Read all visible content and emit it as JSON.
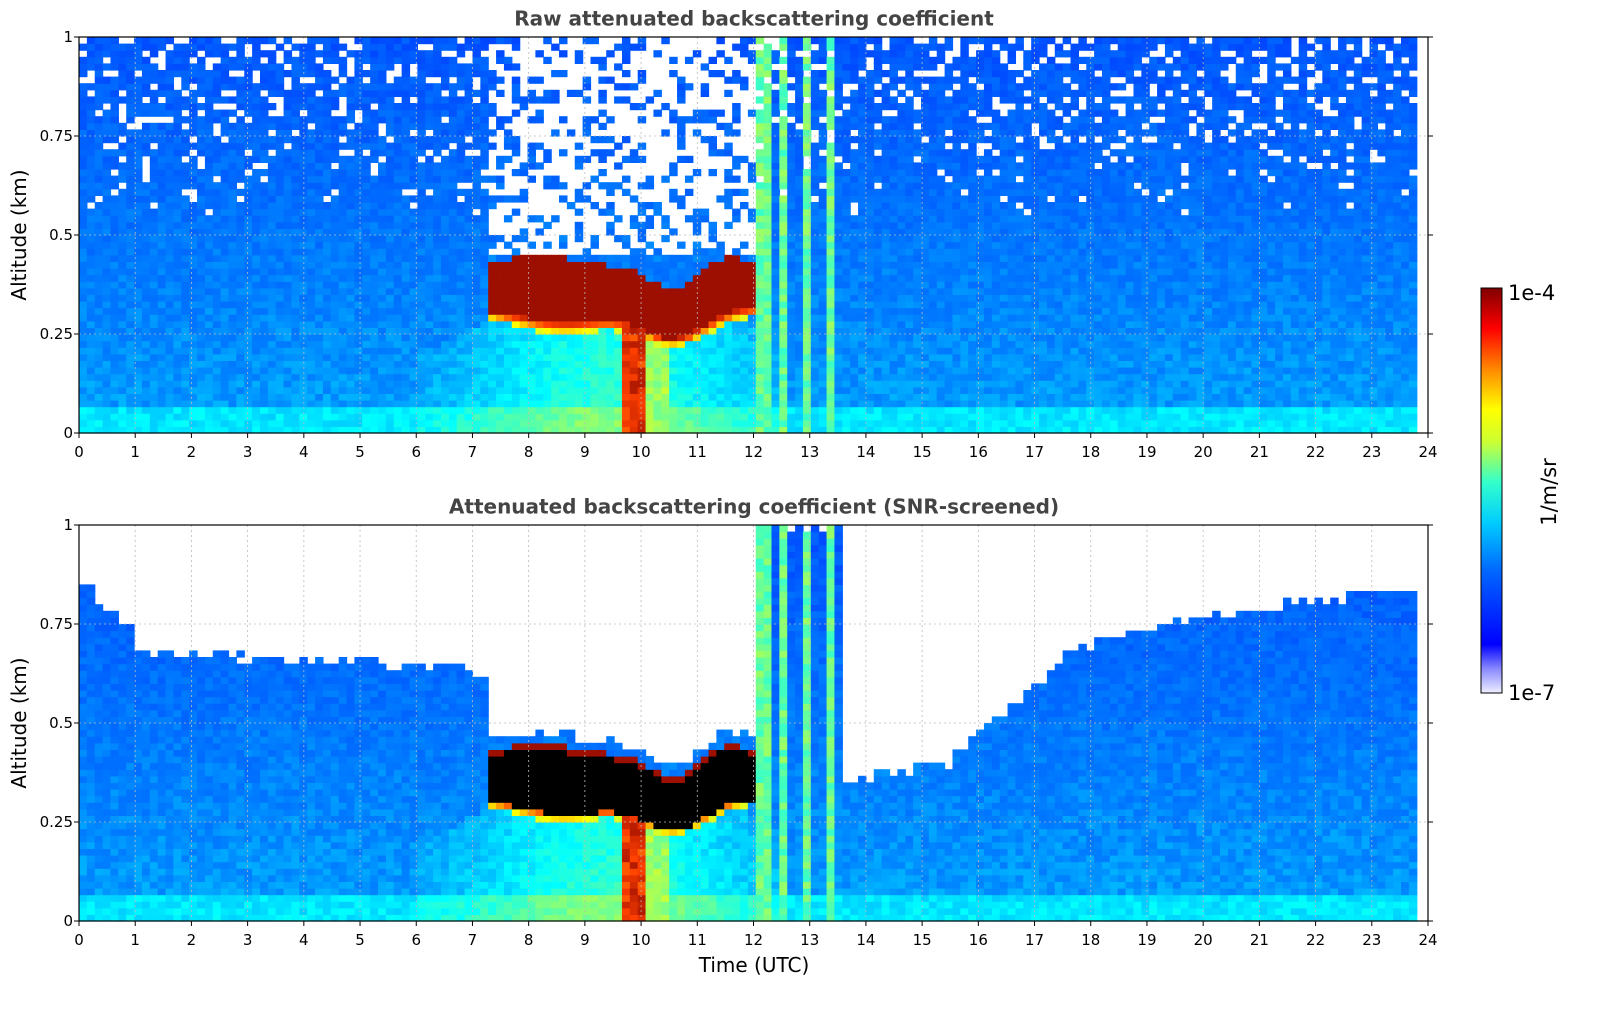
{
  "chart_data": [
    {
      "type": "heatmap",
      "title": "Raw attenuated backscattering coefficient",
      "ylabel": "Altitude (km)",
      "xlabel": "",
      "xlim": [
        0,
        24
      ],
      "ylim": [
        0,
        1
      ],
      "x_ticks": [
        "0",
        "1",
        "2",
        "3",
        "4",
        "5",
        "6",
        "7",
        "8",
        "9",
        "10",
        "11",
        "12",
        "13",
        "14",
        "15",
        "16",
        "17",
        "18",
        "19",
        "20",
        "21",
        "22",
        "23",
        "24"
      ],
      "y_ticks": [
        "0",
        "0.25",
        "0.5",
        "0.75",
        "1"
      ],
      "grid": true,
      "data_extent_x": [
        0,
        23.8
      ],
      "features": [
        {
          "kind": "cloud",
          "x_range": [
            7.3,
            12.0
          ],
          "alt_range": [
            0.2,
            0.45
          ],
          "level": "high"
        },
        {
          "kind": "precipitation_column",
          "x_range": [
            9.6,
            10.0
          ],
          "alt_range": [
            0.0,
            0.3
          ],
          "level": "high"
        },
        {
          "kind": "noise_above",
          "alt_min": 0.6
        }
      ]
    },
    {
      "type": "heatmap",
      "title": "Attenuated backscattering coefficient (SNR-screened)",
      "ylabel": "Altitude (km)",
      "xlabel": "Time (UTC)",
      "xlim": [
        0,
        24
      ],
      "ylim": [
        0,
        1
      ],
      "x_ticks": [
        "0",
        "1",
        "2",
        "3",
        "4",
        "5",
        "6",
        "7",
        "8",
        "9",
        "10",
        "11",
        "12",
        "13",
        "14",
        "15",
        "16",
        "17",
        "18",
        "19",
        "20",
        "21",
        "22",
        "23",
        "24"
      ],
      "y_ticks": [
        "0",
        "0.25",
        "0.5",
        "0.75",
        "1"
      ],
      "grid": true,
      "data_extent_x": [
        0,
        23.8
      ],
      "features": [
        {
          "kind": "cloud_saturated",
          "x_range": [
            7.3,
            12.0
          ],
          "alt_range": [
            0.2,
            0.45
          ],
          "level": "saturated"
        },
        {
          "kind": "screened_top",
          "description_hidden": true
        }
      ]
    }
  ],
  "colorbar": {
    "label": "1/m/sr",
    "max_label": "1e-4",
    "min_label": "1e-7",
    "colormap": "jet",
    "min_color": "#eeeeff",
    "max_color": "#800000"
  },
  "colors": {
    "background": "#ffffff",
    "title": "#444444",
    "grid": "#bbbbbb",
    "saturated": "#000000"
  }
}
